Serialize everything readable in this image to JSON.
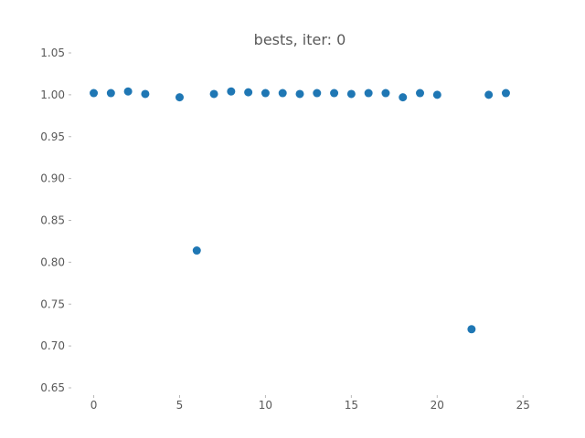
{
  "chart_data": {
    "type": "scatter",
    "title": "bests, iter: 0",
    "xlabel": "",
    "ylabel": "",
    "xlim": [
      -1.2,
      25.2
    ],
    "ylim": [
      0.65,
      1.05
    ],
    "grid": false,
    "legend": "none",
    "x_ticks": [
      0,
      5,
      10,
      15,
      20,
      25
    ],
    "y_ticks": [
      0.65,
      0.7,
      0.75,
      0.8,
      0.85,
      0.9,
      0.95,
      1.0,
      1.05
    ],
    "x_tick_labels": [
      "0",
      "5",
      "10",
      "15",
      "20",
      "25"
    ],
    "y_tick_labels": [
      "0.65",
      "0.70",
      "0.75",
      "0.80",
      "0.85",
      "0.90",
      "0.95",
      "1.00",
      "1.05"
    ],
    "series": [
      {
        "color": "#1f77b4",
        "points": [
          {
            "x": 0,
            "y": 1.002
          },
          {
            "x": 1,
            "y": 1.002
          },
          {
            "x": 2,
            "y": 1.004
          },
          {
            "x": 3,
            "y": 1.001
          },
          {
            "x": 5,
            "y": 0.997
          },
          {
            "x": 6,
            "y": 0.814
          },
          {
            "x": 7,
            "y": 1.001
          },
          {
            "x": 8,
            "y": 1.004
          },
          {
            "x": 9,
            "y": 1.003
          },
          {
            "x": 10,
            "y": 1.002
          },
          {
            "x": 11,
            "y": 1.002
          },
          {
            "x": 12,
            "y": 1.001
          },
          {
            "x": 13,
            "y": 1.002
          },
          {
            "x": 14,
            "y": 1.002
          },
          {
            "x": 15,
            "y": 1.001
          },
          {
            "x": 16,
            "y": 1.002
          },
          {
            "x": 17,
            "y": 1.002
          },
          {
            "x": 18,
            "y": 0.997
          },
          {
            "x": 19,
            "y": 1.002
          },
          {
            "x": 20,
            "y": 1.0
          },
          {
            "x": 22,
            "y": 0.72
          },
          {
            "x": 23,
            "y": 1.0
          },
          {
            "x": 24,
            "y": 1.002
          }
        ]
      }
    ]
  }
}
